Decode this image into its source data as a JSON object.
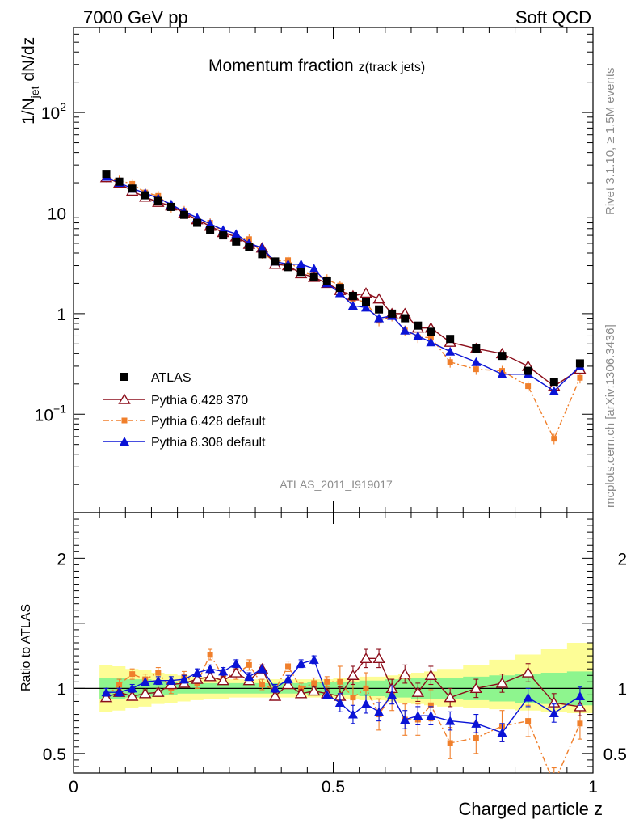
{
  "header": {
    "left": "7000 GeV pp",
    "right": "Soft QCD"
  },
  "side_labels": {
    "rivet": "Rivet 3.1.10, ≥ 1.5M events",
    "mcplots": "mcplots.cern.ch [arXiv:1306.3436]"
  },
  "analysis_id": "ATLAS_2011_I919017",
  "colors": {
    "atlas": "#000000",
    "py6_370": "#8b0d1a",
    "py6_default": "#f07f2b",
    "py8": "#0a13d6",
    "band_inner": "#8ef58e",
    "band_outer": "#fdfd96"
  },
  "chart_data": [
    {
      "type": "line",
      "title_main": "Momentum fraction ",
      "title_sub": "z(track jets)",
      "ylabel": "1/N_jet dN/dz",
      "ylabel_parts": {
        "a": "1/N",
        "sub": "jet",
        "b": " dN/dz"
      },
      "xlim": [
        0,
        1
      ],
      "ylim": [
        0.0105,
        700
      ],
      "yscale": "log",
      "ytick_labels": [
        {
          "v": 100,
          "base": "10",
          "exp": "2"
        },
        {
          "v": 10,
          "base": "10",
          "exp": ""
        },
        {
          "v": 1,
          "base": "1",
          "exp": ""
        },
        {
          "v": 0.1,
          "base": "10",
          "exp": "−1"
        }
      ],
      "legend": [
        "ATLAS",
        "Pythia 6.428 370",
        "Pythia 6.428 default",
        "Pythia 8.308 default"
      ],
      "x": [
        0.063,
        0.088,
        0.113,
        0.138,
        0.163,
        0.188,
        0.213,
        0.238,
        0.263,
        0.288,
        0.313,
        0.338,
        0.363,
        0.388,
        0.413,
        0.438,
        0.463,
        0.488,
        0.513,
        0.538,
        0.563,
        0.588,
        0.613,
        0.638,
        0.663,
        0.688,
        0.725,
        0.775,
        0.825,
        0.875,
        0.925,
        0.975
      ],
      "series": [
        {
          "name": "ATLAS",
          "values": [
            24.5,
            20.5,
            17.5,
            15.0,
            13.2,
            11.5,
            9.6,
            8.0,
            6.8,
            6.0,
            5.2,
            4.6,
            3.9,
            3.3,
            2.9,
            2.6,
            2.3,
            2.1,
            1.8,
            1.5,
            1.3,
            1.1,
            1.0,
            0.9,
            0.76,
            0.66,
            0.56,
            0.45,
            0.38,
            0.27,
            0.21,
            0.32
          ]
        },
        {
          "name": "Pythia 6.428 370",
          "values": [
            22.5,
            19.8,
            16.5,
            14.4,
            12.8,
            11.8,
            10.0,
            8.6,
            7.4,
            6.4,
            5.8,
            4.9,
            4.5,
            3.1,
            3.0,
            2.5,
            2.3,
            2.0,
            1.7,
            1.5,
            1.6,
            1.4,
            1.0,
            1.0,
            0.72,
            0.72,
            0.52,
            0.45,
            0.4,
            0.3,
            0.19,
            0.28
          ]
        },
        {
          "name": "Pythia 6.428 default",
          "values": [
            23.0,
            21.0,
            19.5,
            16.0,
            14.8,
            11.5,
            10.5,
            8.3,
            8.0,
            6.5,
            5.8,
            5.5,
            4.0,
            3.3,
            3.4,
            2.6,
            2.4,
            2.2,
            1.9,
            1.4,
            1.3,
            0.85,
            0.95,
            0.68,
            0.58,
            0.58,
            0.33,
            0.28,
            0.27,
            0.19,
            0.057,
            0.23
          ]
        },
        {
          "name": "Pythia 8.308 default",
          "values": [
            23.0,
            20.0,
            17.5,
            15.8,
            14.0,
            12.2,
            10.3,
            9.0,
            7.8,
            6.8,
            6.2,
            5.0,
            4.5,
            3.3,
            3.1,
            3.1,
            2.8,
            2.0,
            1.6,
            1.2,
            1.15,
            0.9,
            0.95,
            0.68,
            0.6,
            0.52,
            0.42,
            0.33,
            0.25,
            0.25,
            0.17,
            0.3
          ]
        }
      ]
    },
    {
      "type": "line",
      "ylabel": "Ratio to ATLAS",
      "xlabel": "Charged particle z",
      "xlim": [
        0,
        1
      ],
      "ylim": [
        0.35,
        2.35
      ],
      "reference": 1,
      "ytick_labels": [
        "0.5",
        "1",
        "2"
      ],
      "xtick_labels": [
        "0",
        "0.5",
        "1"
      ],
      "band_x": [
        0.05,
        0.075,
        0.1,
        0.125,
        0.15,
        0.175,
        0.2,
        0.225,
        0.25,
        0.275,
        0.3,
        0.325,
        0.35,
        0.375,
        0.4,
        0.425,
        0.45,
        0.475,
        0.5,
        0.525,
        0.55,
        0.575,
        0.6,
        0.625,
        0.65,
        0.675,
        0.7,
        0.75,
        0.8,
        0.85,
        0.9,
        0.95,
        1.0
      ],
      "band_inner_lo": [
        0.92,
        0.92,
        0.93,
        0.93,
        0.94,
        0.95,
        0.96,
        0.96,
        0.96,
        0.96,
        0.96,
        0.96,
        0.96,
        0.96,
        0.96,
        0.96,
        0.95,
        0.95,
        0.95,
        0.95,
        0.94,
        0.94,
        0.93,
        0.93,
        0.92,
        0.92,
        0.92,
        0.91,
        0.9,
        0.89,
        0.88,
        0.87
      ],
      "band_inner_hi": [
        1.08,
        1.08,
        1.07,
        1.07,
        1.06,
        1.05,
        1.04,
        1.04,
        1.04,
        1.04,
        1.04,
        1.04,
        1.04,
        1.04,
        1.04,
        1.04,
        1.05,
        1.05,
        1.05,
        1.05,
        1.06,
        1.06,
        1.07,
        1.07,
        1.08,
        1.08,
        1.08,
        1.09,
        1.1,
        1.11,
        1.12,
        1.13
      ],
      "band_outer_lo": [
        0.82,
        0.83,
        0.85,
        0.86,
        0.88,
        0.89,
        0.9,
        0.91,
        0.92,
        0.92,
        0.93,
        0.93,
        0.93,
        0.93,
        0.93,
        0.93,
        0.93,
        0.93,
        0.92,
        0.92,
        0.91,
        0.91,
        0.9,
        0.89,
        0.88,
        0.87,
        0.86,
        0.85,
        0.84,
        0.83,
        0.82,
        0.81
      ],
      "band_outer_hi": [
        1.18,
        1.17,
        1.15,
        1.14,
        1.12,
        1.11,
        1.1,
        1.09,
        1.08,
        1.08,
        1.07,
        1.07,
        1.07,
        1.07,
        1.07,
        1.07,
        1.07,
        1.07,
        1.08,
        1.08,
        1.09,
        1.09,
        1.1,
        1.11,
        1.12,
        1.13,
        1.15,
        1.18,
        1.22,
        1.26,
        1.3,
        1.35
      ],
      "series": [
        {
          "name": "Pythia 6.428 370",
          "values": [
            0.93,
            0.97,
            0.94,
            0.96,
            0.97,
            1.03,
            1.04,
            1.07,
            1.09,
            1.06,
            1.12,
            1.06,
            1.15,
            0.94,
            1.03,
            0.96,
            0.98,
            0.96,
            0.94,
            1.1,
            1.23,
            1.23,
            1.0,
            1.11,
            0.97,
            1.1,
            0.93,
            1.0,
            1.04,
            1.12,
            0.89,
            0.86
          ]
        },
        {
          "name": "Pythia 6.428 default",
          "values": [
            0.94,
            1.03,
            1.11,
            1.07,
            1.12,
            1.0,
            1.09,
            1.04,
            1.26,
            1.09,
            1.11,
            1.18,
            1.03,
            0.99,
            1.17,
            1.0,
            1.04,
            1.05,
            1.05,
            0.93,
            1.0,
            0.8,
            0.95,
            0.76,
            0.76,
            0.87,
            0.58,
            0.62,
            0.71,
            0.75,
            0.27,
            0.73
          ]
        },
        {
          "name": "Pythia 8.308 default",
          "values": [
            0.97,
            0.97,
            1.0,
            1.05,
            1.06,
            1.06,
            1.07,
            1.12,
            1.15,
            1.13,
            1.19,
            1.09,
            1.15,
            1.0,
            1.07,
            1.19,
            1.22,
            0.95,
            0.89,
            0.8,
            0.88,
            0.82,
            0.95,
            0.76,
            0.79,
            0.79,
            0.75,
            0.73,
            0.66,
            0.93,
            0.81,
            0.94
          ]
        }
      ]
    }
  ]
}
